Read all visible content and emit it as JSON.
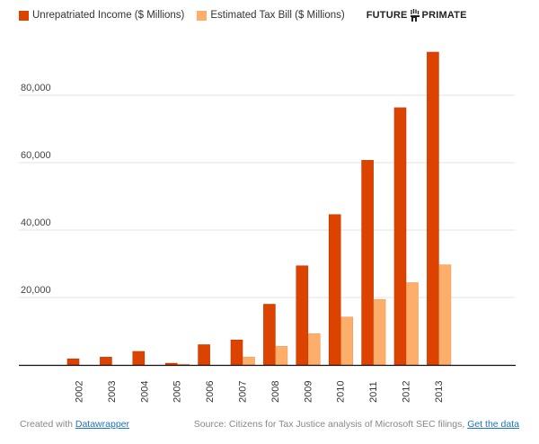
{
  "legend": {
    "items": [
      {
        "label": "Unrepatriated Income ($ Millions)",
        "color": "#dd4300"
      },
      {
        "label": "Estimated Tax Bill ($ Millions)",
        "color": "#fdae6b"
      }
    ],
    "logo_left": "FUTURE",
    "logo_right": "PRIMATE"
  },
  "footer": {
    "created_prefix": "Created with ",
    "created_link": "Datawrapper",
    "source_text": "Source: Citizens for Tax Justice analysis of Microsoft SEC filings, ",
    "source_link": "Get the data"
  },
  "chart_data": {
    "type": "bar",
    "title": "",
    "xlabel": "",
    "ylabel": "",
    "categories": [
      "2002",
      "2003",
      "2004",
      "2005",
      "2006",
      "2007",
      "2008",
      "2009",
      "2010",
      "2011",
      "2012",
      "2013"
    ],
    "series": [
      {
        "name": "Unrepatriated Income ($ Millions)",
        "color": "#dd4300",
        "values": [
          1800,
          2300,
          4000,
          500,
          6000,
          7400,
          18000,
          29400,
          44600,
          60700,
          76300,
          92800
        ]
      },
      {
        "name": "Estimated Tax Bill ($ Millions)",
        "color": "#fdae6b",
        "values": [
          0,
          0,
          0,
          200,
          0,
          2300,
          5500,
          9250,
          14200,
          19400,
          24400,
          29700
        ]
      }
    ],
    "yticks": [
      20000,
      40000,
      60000,
      80000
    ],
    "ytick_labels": [
      "20,000",
      "40,000",
      "60,000",
      "80,000"
    ],
    "ylim": [
      0,
      100000
    ],
    "grid": true,
    "legend_position": "top-left"
  }
}
